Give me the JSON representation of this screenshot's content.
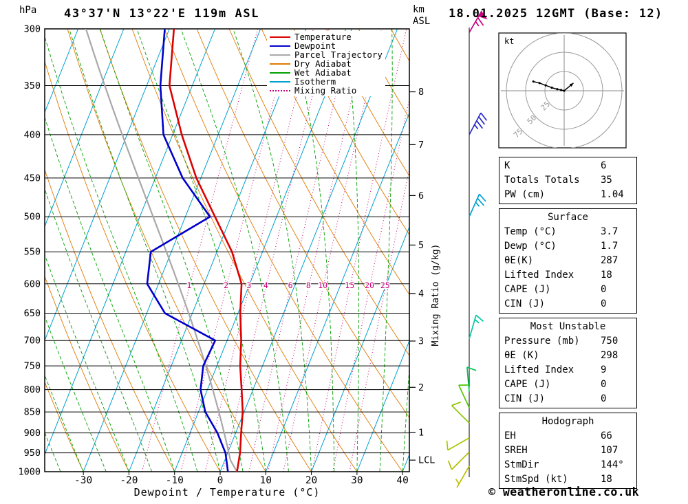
{
  "header": {
    "pressure_unit": "hPa",
    "title": "43°37'N 13°22'E 119m ASL",
    "altitude_unit_top": "km",
    "altitude_unit_bottom": "ASL",
    "datetime": "18.01.2025 12GMT (Base: 12)"
  },
  "legend": {
    "items": [
      {
        "label": "Temperature",
        "color": "#dd0000",
        "dash": ""
      },
      {
        "label": "Dewpoint",
        "color": "#0000cc",
        "dash": ""
      },
      {
        "label": "Parcel Trajectory",
        "color": "#a8a8a8",
        "dash": ""
      },
      {
        "label": "Dry Adiabat",
        "color": "#e07800",
        "dash": ""
      },
      {
        "label": "Wet Adiabat",
        "color": "#00a000",
        "dash": ""
      },
      {
        "label": "Isotherm",
        "color": "#00a0d0",
        "dash": ""
      },
      {
        "label": "Mixing Ratio",
        "color": "#c80078",
        "dash": "2,3"
      }
    ]
  },
  "chart_data": {
    "type": "skew-t-log-p-sounding",
    "title": "43°37'N 13°22'E 119m ASL",
    "xlabel": "Dewpoint / Temperature (°C)",
    "ylabel": "hPa",
    "pressure_ticks": [
      300,
      350,
      400,
      450,
      500,
      550,
      600,
      650,
      700,
      750,
      800,
      850,
      900,
      950,
      1000
    ],
    "temp_ticks_c": [
      -30,
      -20,
      -10,
      0,
      10,
      20,
      30,
      40
    ],
    "pressure_range": [
      300,
      1000
    ],
    "km_axis": {
      "ticks": [
        {
          "label": "8",
          "p": 356
        },
        {
          "label": "7",
          "p": 411
        },
        {
          "label": "6",
          "p": 472
        },
        {
          "label": "5",
          "p": 540
        },
        {
          "label": "4",
          "p": 616
        },
        {
          "label": "3",
          "p": 701
        },
        {
          "label": "2",
          "p": 795
        },
        {
          "label": "1",
          "p": 899
        },
        {
          "label": "LCL",
          "p": 969
        }
      ]
    },
    "mixing_ratio": {
      "axis_label": "Mixing Ratio (g/kg)",
      "values": [
        1,
        2,
        3,
        4,
        6,
        8,
        10,
        15,
        20,
        25
      ],
      "label_pressure": 607
    },
    "background": {
      "isotherms_c": {
        "min": -120,
        "max": 40,
        "step": 10
      },
      "dry_adiabats_c": {
        "min": -40,
        "max": 150,
        "step": 10
      },
      "wet_adiabats_c": {
        "min": -60,
        "max": 40,
        "step": 5
      }
    },
    "colors": {
      "temperature": "#dd0000",
      "dewpoint": "#0000cc",
      "parcel": "#a8a8a8",
      "dry_adiabat": "#e07800",
      "wet_adiabat": "#00a000",
      "isotherm": "#00a0d0",
      "mixing_ratio": "#c80078",
      "grid": "#000000"
    },
    "temperature_profile_p_c": [
      [
        1000,
        3.7
      ],
      [
        950,
        2.7
      ],
      [
        900,
        1.2
      ],
      [
        850,
        -0.3
      ],
      [
        800,
        -2.5
      ],
      [
        750,
        -4.9
      ],
      [
        700,
        -6.9
      ],
      [
        650,
        -9.5
      ],
      [
        600,
        -11.8
      ],
      [
        550,
        -16.7
      ],
      [
        500,
        -23.5
      ],
      [
        450,
        -31.0
      ],
      [
        400,
        -38.0
      ],
      [
        350,
        -45.0
      ],
      [
        300,
        -49.0
      ]
    ],
    "dewpoint_profile_p_c": [
      [
        1000,
        1.7
      ],
      [
        950,
        -0.5
      ],
      [
        900,
        -4.0
      ],
      [
        850,
        -8.5
      ],
      [
        800,
        -11.5
      ],
      [
        750,
        -13.0
      ],
      [
        700,
        -12.6
      ],
      [
        650,
        -26.0
      ],
      [
        600,
        -32.5
      ],
      [
        550,
        -34.5
      ],
      [
        500,
        -24.6
      ],
      [
        450,
        -34.0
      ],
      [
        400,
        -42.0
      ],
      [
        350,
        -47.0
      ],
      [
        300,
        -51.0
      ]
    ],
    "parcel": {
      "surface_pressure": 1000,
      "surface_temp_c": 3.7,
      "surface_dewpoint_c": 1.7
    }
  },
  "side_panel": {
    "hodograph": {
      "unit": "kt",
      "ring_labels": [
        "25",
        "50",
        "75"
      ],
      "ring_radii_kt": [
        25,
        50,
        75
      ],
      "trace_uv_kt": [
        [
          0,
          0
        ],
        [
          -4,
          1
        ],
        [
          -9,
          2
        ],
        [
          -16,
          4
        ],
        [
          -24,
          7
        ],
        [
          -32,
          10
        ],
        [
          -40,
          12
        ]
      ],
      "storm_motion_arrow_uv_kt": [
        12,
        10
      ]
    },
    "wind_barbs": [
      {
        "p": 303,
        "color": "#c80082",
        "angle_deg": -60,
        "speed_kt": 65
      },
      {
        "p": 400,
        "color": "#2828c8",
        "angle_deg": -62,
        "speed_kt": 35
      },
      {
        "p": 500,
        "color": "#00a0d0",
        "angle_deg": -66,
        "speed_kt": 25
      },
      {
        "p": 697,
        "color": "#00c8a0",
        "angle_deg": -74,
        "speed_kt": 15
      },
      {
        "p": 805,
        "color": "#00c850",
        "angle_deg": -95,
        "speed_kt": 10
      },
      {
        "p": 840,
        "color": "#50c800",
        "angle_deg": -115,
        "speed_kt": 10
      },
      {
        "p": 876,
        "color": "#8cc800",
        "angle_deg": -135,
        "speed_kt": 10
      },
      {
        "p": 912,
        "color": "#aac800",
        "angle_deg": 150,
        "speed_kt": 10
      },
      {
        "p": 948,
        "color": "#b4be00",
        "angle_deg": 135,
        "speed_kt": 10
      },
      {
        "p": 985,
        "color": "#bebe00",
        "angle_deg": 120,
        "speed_kt": 5
      }
    ],
    "tables": [
      {
        "header": null,
        "rows": [
          [
            "K",
            "6"
          ],
          [
            "Totals Totals",
            "35"
          ],
          [
            "PW (cm)",
            "1.04"
          ]
        ]
      },
      {
        "header": "Surface",
        "rows": [
          [
            "Temp (°C)",
            "3.7"
          ],
          [
            "Dewp (°C)",
            "1.7"
          ],
          [
            "θE(K)",
            "287"
          ],
          [
            "Lifted Index",
            "18"
          ],
          [
            "CAPE (J)",
            "0"
          ],
          [
            "CIN (J)",
            "0"
          ]
        ]
      },
      {
        "header": "Most Unstable",
        "rows": [
          [
            "Pressure (mb)",
            "750"
          ],
          [
            "θE (K)",
            "298"
          ],
          [
            "Lifted Index",
            "9"
          ],
          [
            "CAPE (J)",
            "0"
          ],
          [
            "CIN (J)",
            "0"
          ]
        ]
      },
      {
        "header": "Hodograph",
        "rows": [
          [
            "EH",
            "66"
          ],
          [
            "SREH",
            "107"
          ],
          [
            "StmDir",
            "144°"
          ],
          [
            "StmSpd (kt)",
            "18"
          ]
        ]
      }
    ]
  },
  "footer": {
    "copyright": "© weatheronline.co.uk"
  }
}
